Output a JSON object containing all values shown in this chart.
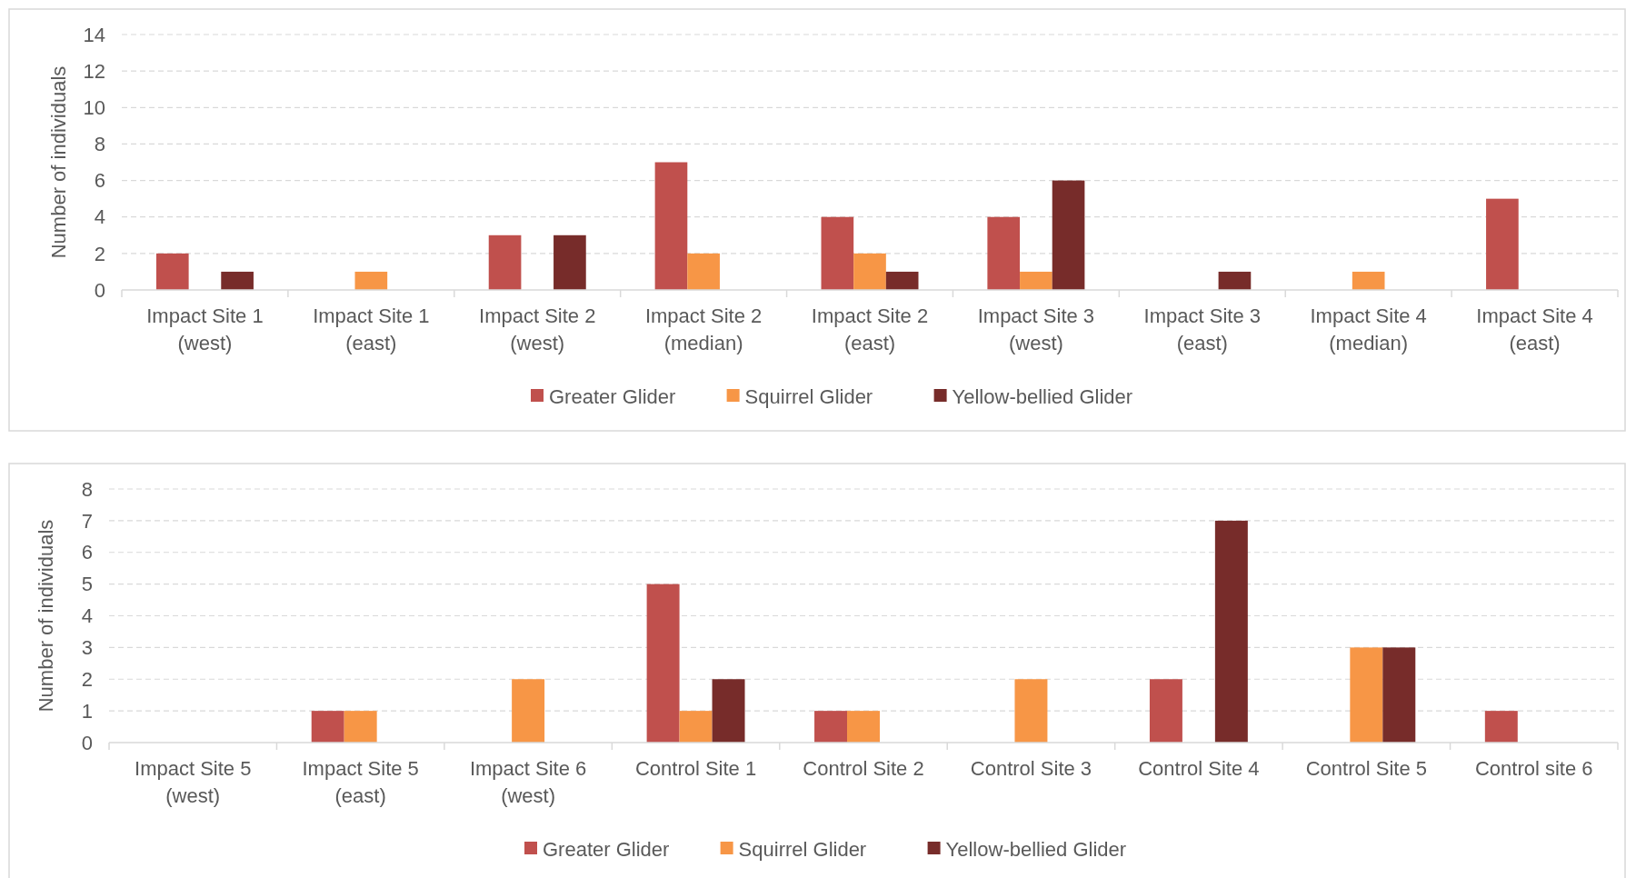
{
  "chart_data": [
    {
      "type": "bar",
      "ylabel": "Number of individuals",
      "categories": [
        "Impact Site 1\n(west)",
        "Impact Site 1\n(east)",
        "Impact Site 2\n(west)",
        "Impact Site 2\n(median)",
        "Impact Site 2\n(east)",
        "Impact Site 3\n(west)",
        "Impact Site 3\n(east)",
        "Impact Site 4\n(median)",
        "Impact Site 4\n(east)"
      ],
      "series": [
        {
          "name": "Greater Glider",
          "color": "#c0504d",
          "values": [
            2,
            0,
            3,
            7,
            4,
            4,
            0,
            0,
            5
          ]
        },
        {
          "name": "Squirrel Glider",
          "color": "#f79646",
          "values": [
            0,
            1,
            0,
            2,
            2,
            1,
            0,
            1,
            0
          ]
        },
        {
          "name": "Yellow-bellied Glider",
          "color": "#772c2a",
          "values": [
            1,
            0,
            3,
            0,
            1,
            6,
            1,
            0,
            0
          ]
        }
      ],
      "ylim": [
        0,
        14
      ],
      "yticks": [
        0,
        2,
        4,
        6,
        8,
        10,
        12,
        14
      ],
      "grid": "y",
      "legend": "bottom"
    },
    {
      "type": "bar",
      "ylabel": "Number of individuals",
      "categories": [
        "Impact Site 5\n(west)",
        "Impact Site 5\n(east)",
        "Impact Site 6\n(west)",
        "Control Site 1",
        "Control Site 2",
        "Control Site 3",
        "Control Site 4",
        "Control Site 5",
        "Control site 6"
      ],
      "series": [
        {
          "name": "Greater Glider",
          "color": "#c0504d",
          "values": [
            0,
            1,
            0,
            5,
            1,
            0,
            2,
            0,
            1
          ]
        },
        {
          "name": "Squirrel Glider",
          "color": "#f79646",
          "values": [
            0,
            1,
            2,
            1,
            1,
            2,
            0,
            3,
            0
          ]
        },
        {
          "name": "Yellow-bellied Glider",
          "color": "#772c2a",
          "values": [
            0,
            0,
            0,
            2,
            0,
            0,
            7,
            3,
            0
          ]
        }
      ],
      "ylim": [
        0,
        8
      ],
      "yticks": [
        0,
        1,
        2,
        3,
        4,
        5,
        6,
        7,
        8
      ],
      "grid": "y",
      "legend": "bottom"
    }
  ]
}
